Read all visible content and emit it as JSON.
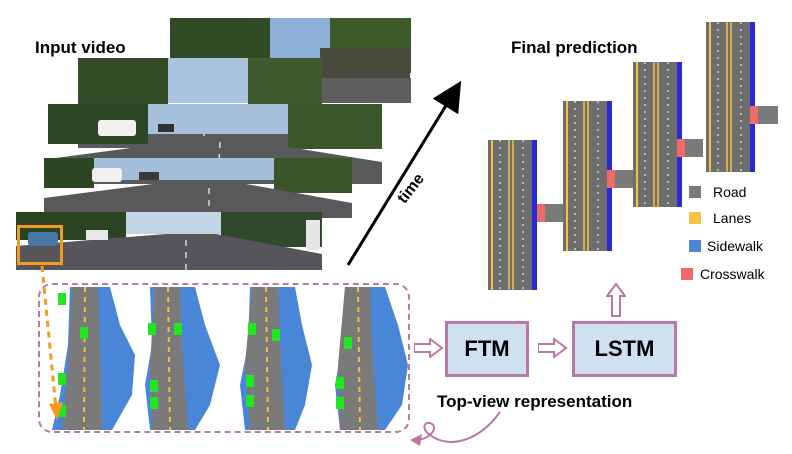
{
  "labels": {
    "input_video": "Input video",
    "final_prediction": "Final prediction",
    "time": "time",
    "ftm": "FTM",
    "lstm": "LSTM",
    "top_view": "Top-view representation"
  },
  "legend": [
    {
      "label": "Road",
      "color": "#7a7a7a"
    },
    {
      "label": "Lanes",
      "color": "#f5c242"
    },
    {
      "label": "Sidewalk",
      "color": "#4a86d8"
    },
    {
      "label": "Crosswalk",
      "color": "#f06a6a"
    }
  ],
  "colors": {
    "road": "#6e6e6e",
    "lane": "#f5c242",
    "sidewalk": "#2a2ad8",
    "crosswalk": "#f06a6a",
    "box_fill": "#cfe0f1",
    "accent": "#b87aa5",
    "highlight": "#f29b1d",
    "marker": "#22e622",
    "topview_sidewalk": "#4a86d8"
  },
  "icons": {
    "time_arrow": "arrow-up-right-icon",
    "flow_arrow": "arrow-right-icon",
    "feedback_arrow": "curved-arrow-icon"
  }
}
